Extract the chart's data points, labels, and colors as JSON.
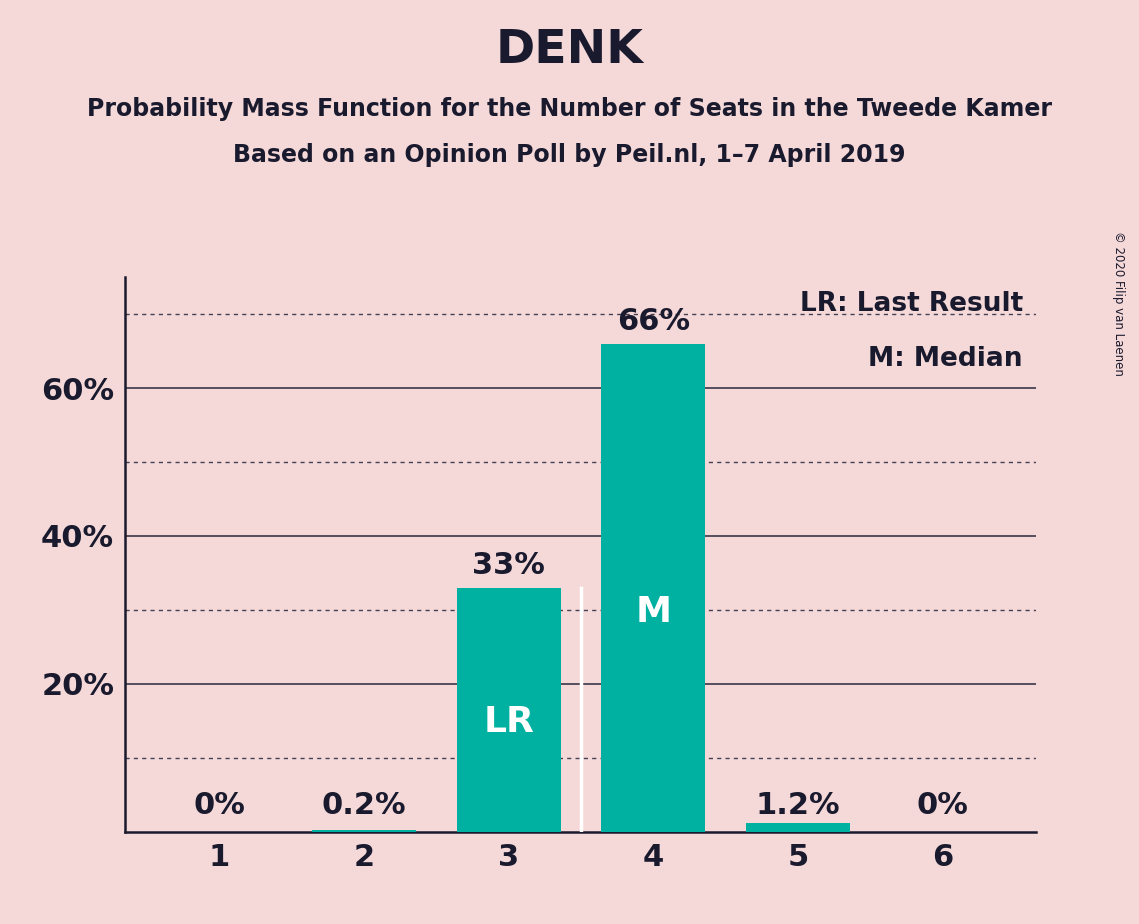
{
  "title": "DENK",
  "subtitle1": "Probability Mass Function for the Number of Seats in the Tweede Kamer",
  "subtitle2": "Based on an Opinion Poll by Peil.nl, 1–7 April 2019",
  "copyright": "© 2020 Filip van Laenen",
  "categories": [
    1,
    2,
    3,
    4,
    5,
    6
  ],
  "values": [
    0.0,
    0.002,
    0.33,
    0.66,
    0.012,
    0.0
  ],
  "bar_color": "#00b0a0",
  "background_color": "#f5d9d9",
  "bar_labels": [
    "0%",
    "0.2%",
    "33%",
    "66%",
    "1.2%",
    "0%"
  ],
  "last_result_bar_idx": 2,
  "median_bar_idx": 3,
  "label_lr": "LR",
  "label_m": "M",
  "legend_lr": "LR: Last Result",
  "legend_m": "M: Median",
  "ylim": [
    0,
    0.75
  ],
  "ytick_values": [
    0.2,
    0.4,
    0.6
  ],
  "ytick_labels": [
    "20%",
    "40%",
    "60%"
  ],
  "solid_grid_ticks": [
    0.2,
    0.4,
    0.6
  ],
  "dotted_grid_ticks": [
    0.1,
    0.3,
    0.5,
    0.7
  ],
  "title_fontsize": 34,
  "subtitle_fontsize": 17,
  "tick_fontsize": 22,
  "bar_label_fontsize": 22,
  "inside_label_fontsize": 26,
  "legend_fontsize": 19,
  "text_color": "#1a1a2e",
  "bar_width": 0.72
}
